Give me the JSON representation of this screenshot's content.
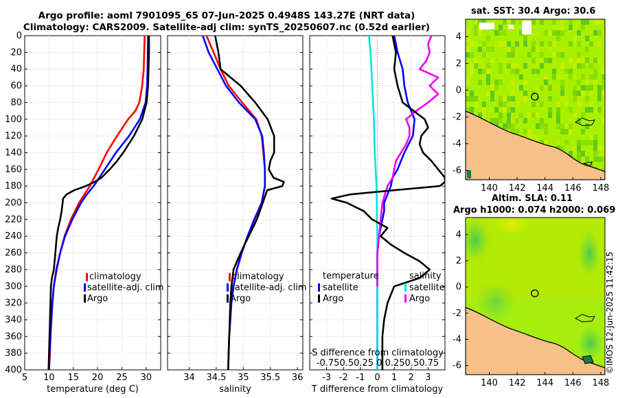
{
  "titles": {
    "line1": "Argo profile: aoml 7901095_65 07-Jun-2025 0.4948S 143.27E (NRT data)",
    "line2": "Climatology: CARS2009. Satellite-adj clim: synTS_20250607.nc (0.52d earlier)",
    "sst": "sat. SST: 30.4 Argo: 30.6",
    "sla1": "Altim. SLA: 0.11",
    "sla2": "Argo h1000: 0.074 h2000: 0.069",
    "stamp": "©IMOS 12-Jun-2025 11:42:15"
  },
  "colors": {
    "climatology": "#ff0000",
    "satellite": "#0000ff",
    "argo": "#000000",
    "s_sat": "#00e5e5",
    "s_clim": "#ee00ee",
    "land": "#f7c089",
    "sea_base": "#a6f000"
  },
  "legends": {
    "clim": "climatology",
    "sat": "satellite-adj. clim",
    "argo": "Argo",
    "temperature": "temperature",
    "salinity": "salinity",
    "satellite": "satellite",
    "note_line1": "S difference from climatology",
    "note_line2": "-0.750.50.25  0  0.250.50.75"
  },
  "chart_data": [
    {
      "type": "line",
      "title": "",
      "xlabel": "temperature (deg C)",
      "ylabel": "",
      "xlim": [
        5,
        33
      ],
      "ylim": [
        400,
        0
      ],
      "xticks": [
        5,
        10,
        15,
        20,
        25,
        30
      ],
      "yticks": [
        0,
        20,
        40,
        60,
        80,
        100,
        120,
        140,
        160,
        180,
        200,
        220,
        240,
        260,
        280,
        300,
        320,
        340,
        360,
        380,
        400
      ],
      "series": [
        {
          "name": "climatology",
          "depth": [
            0,
            40,
            60,
            80,
            90,
            100,
            120,
            140,
            160,
            170,
            180,
            200,
            220,
            240,
            260,
            280,
            300,
            320,
            340,
            360,
            380,
            400
          ],
          "values": [
            29.7,
            29.5,
            29.2,
            28.6,
            27.8,
            26.3,
            24.0,
            21.9,
            20.2,
            19.3,
            18.4,
            16.2,
            14.5,
            13.2,
            12.3,
            11.6,
            11.0,
            10.7,
            10.5,
            10.3,
            10.2,
            10.0
          ]
        },
        {
          "name": "satellite-adj. clim",
          "depth": [
            0,
            40,
            60,
            80,
            100,
            120,
            140,
            160,
            180,
            190,
            200,
            220,
            240,
            260,
            280,
            300,
            320,
            340,
            360,
            380,
            400
          ],
          "values": [
            30.4,
            30.3,
            30.2,
            29.9,
            28.7,
            26.5,
            23.8,
            21.5,
            19.2,
            17.8,
            16.6,
            14.8,
            13.3,
            12.3,
            11.5,
            11.0,
            10.7,
            10.5,
            10.3,
            10.1,
            10.0
          ]
        },
        {
          "name": "Argo",
          "depth": [
            0,
            20,
            40,
            60,
            80,
            100,
            120,
            140,
            150,
            160,
            170,
            175,
            180,
            185,
            190,
            195,
            200,
            210,
            220,
            230,
            240,
            260,
            280,
            290,
            300,
            320,
            340,
            360,
            380,
            400
          ],
          "values": [
            30.6,
            30.6,
            30.5,
            30.4,
            30.1,
            29.2,
            27.5,
            25.3,
            24.0,
            22.5,
            20.8,
            19.4,
            17.6,
            15.2,
            13.6,
            12.9,
            12.8,
            12.6,
            12.3,
            11.9,
            11.6,
            11.3,
            11.0,
            10.6,
            10.4,
            10.3,
            10.2,
            10.1,
            10.0,
            9.9
          ]
        }
      ]
    },
    {
      "type": "line",
      "title": "",
      "xlabel": "salinity",
      "ylabel": "",
      "xlim": [
        33.6,
        36.1
      ],
      "ylim": [
        400,
        0
      ],
      "xticks": [
        34,
        34.5,
        35,
        35.5,
        36
      ],
      "series": [
        {
          "name": "climatology",
          "depth": [
            0,
            20,
            40,
            60,
            80,
            100,
            120,
            140,
            160,
            180,
            200,
            220,
            240,
            260,
            280,
            300,
            320,
            340,
            360,
            380,
            400
          ],
          "values": [
            34.32,
            34.45,
            34.58,
            34.73,
            34.98,
            35.24,
            35.34,
            35.37,
            35.4,
            35.4,
            35.34,
            35.21,
            35.08,
            34.97,
            34.88,
            34.82,
            34.78,
            34.76,
            34.74,
            34.73,
            34.72
          ]
        },
        {
          "name": "satellite-adj. clim",
          "depth": [
            0,
            20,
            40,
            60,
            80,
            100,
            120,
            140,
            160,
            180,
            200,
            220,
            240,
            260,
            280,
            300,
            320,
            340,
            360,
            380,
            400
          ],
          "values": [
            34.25,
            34.36,
            34.52,
            34.68,
            34.92,
            35.22,
            35.35,
            35.38,
            35.4,
            35.4,
            35.34,
            35.2,
            35.08,
            34.97,
            34.88,
            34.82,
            34.78,
            34.76,
            34.74,
            34.73,
            34.72
          ]
        },
        {
          "name": "Argo",
          "depth": [
            0,
            20,
            40,
            60,
            80,
            100,
            120,
            140,
            150,
            160,
            170,
            175,
            180,
            185,
            200,
            220,
            240,
            260,
            280,
            300,
            320,
            340,
            360,
            380,
            400
          ],
          "values": [
            34.48,
            34.54,
            34.58,
            34.95,
            35.22,
            35.45,
            35.57,
            35.57,
            35.5,
            35.47,
            35.56,
            35.75,
            35.72,
            35.44,
            35.36,
            35.25,
            35.1,
            34.95,
            34.82,
            34.78,
            34.76,
            34.75,
            34.74,
            34.73,
            34.72
          ]
        }
      ]
    },
    {
      "type": "line",
      "title": "",
      "xlabel": "T difference from climatology",
      "ylabel": "",
      "xlim": [
        -4,
        4
      ],
      "ylim": [
        400,
        0
      ],
      "xticks": [
        -3,
        -2,
        -1,
        0,
        1,
        2,
        3
      ],
      "series": [
        {
          "name": "satellite (temperature)",
          "depth": [
            0,
            20,
            40,
            60,
            80,
            100,
            120,
            140,
            160,
            170,
            180,
            190,
            200,
            210,
            220,
            240,
            260,
            280,
            300,
            320,
            340,
            360,
            380,
            400
          ],
          "values": [
            1.0,
            1.2,
            1.5,
            1.6,
            1.8,
            2.2,
            2.1,
            1.6,
            1.2,
            0.9,
            0.8,
            0.6,
            0.4,
            0.4,
            0.3,
            0.1,
            0.0,
            0.0,
            0.0,
            0.0,
            0.0,
            0.0,
            0.0,
            0.0
          ]
        },
        {
          "name": "satellite (salinity)",
          "depth": [
            0,
            20,
            40,
            60,
            80,
            100,
            120,
            140,
            160,
            180,
            200,
            220,
            240,
            260,
            280,
            300,
            320,
            340,
            360,
            380,
            400
          ],
          "values": [
            -0.5,
            -0.4,
            -0.35,
            -0.3,
            -0.25,
            -0.2,
            -0.18,
            -0.15,
            -0.1,
            -0.05,
            -0.03,
            -0.02,
            0.0,
            0.0,
            0.0,
            0.0,
            0.0,
            0.0,
            0.0,
            0.0,
            0.0
          ]
        },
        {
          "name": "Argo (salinity)",
          "depth": [
            0,
            10,
            20,
            30,
            40,
            50,
            60,
            70,
            80,
            90,
            100,
            110,
            120,
            130,
            140,
            150,
            160,
            170,
            180,
            200,
            220,
            240,
            260,
            280,
            300
          ],
          "values": [
            3.2,
            3.0,
            3.1,
            2.9,
            2.5,
            3.6,
            3.1,
            3.6,
            3.0,
            2.3,
            1.7,
            1.9,
            1.9,
            1.7,
            1.4,
            1.1,
            1.0,
            0.9,
            0.6,
            0.3,
            0.2,
            0.1,
            0.0,
            0.0,
            0.0
          ]
        },
        {
          "name": "Argo (temperature)",
          "depth": [
            0,
            10,
            20,
            40,
            60,
            80,
            100,
            110,
            120,
            130,
            140,
            150,
            160,
            165,
            170,
            175,
            180,
            185,
            190,
            195,
            200,
            210,
            220,
            230,
            240,
            250,
            260,
            270,
            280,
            290,
            300,
            320,
            340,
            360,
            380,
            400
          ],
          "values": [
            0.9,
            1.0,
            1.1,
            1.0,
            1.2,
            1.5,
            2.8,
            3.0,
            2.6,
            2.5,
            2.7,
            3.2,
            3.6,
            3.8,
            4.0,
            4.0,
            3.7,
            1.0,
            -1.6,
            -2.7,
            -1.8,
            -0.8,
            -0.3,
            0.6,
            0.2,
            0.8,
            1.6,
            2.5,
            3.1,
            2.5,
            1.0,
            0.6,
            0.4,
            0.3,
            0.3,
            0.3
          ]
        }
      ]
    }
  ],
  "maps": [
    {
      "name": "sst",
      "xticks": [
        "140",
        "142",
        "144",
        "146",
        "148"
      ],
      "yticks": [
        "4",
        "2",
        "0",
        "-2",
        "-4",
        "-6"
      ],
      "marker_lon": 143.27,
      "marker_lat": -0.49
    },
    {
      "name": "sla",
      "xticks": [
        "140",
        "142",
        "144",
        "146",
        "148"
      ],
      "yticks": [
        "4",
        "2",
        "0",
        "-2",
        "-4",
        "-6"
      ],
      "marker_lon": 143.27,
      "marker_lat": -0.49
    }
  ]
}
